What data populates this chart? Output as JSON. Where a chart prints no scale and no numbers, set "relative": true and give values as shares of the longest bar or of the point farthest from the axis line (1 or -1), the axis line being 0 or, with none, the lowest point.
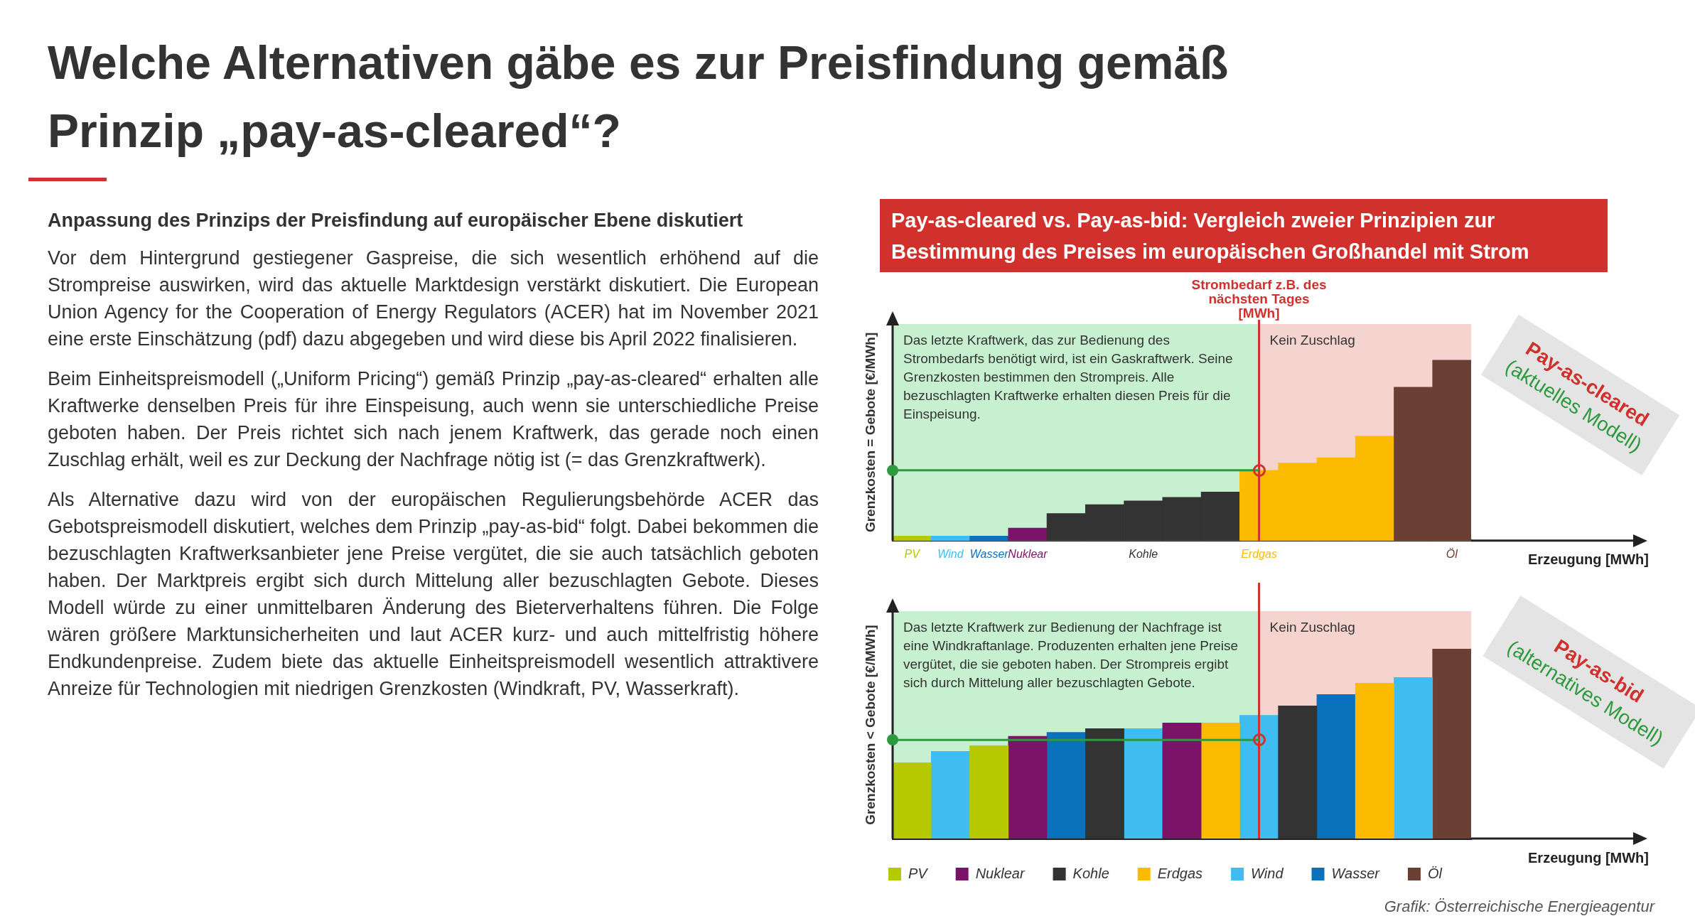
{
  "chart_data": [
    {
      "type": "other",
      "title": "Welche Alternativen gäbe es zur Preisfindung gemäß Prinzip „pay-as-cleared“?",
      "subtitle": "Anpassung des Prinzips der Preisfindung auf europäischer Ebene diskutiert",
      "annotations": [
        "Vor dem Hintergrund gestiegener Gaspreise, die sich wesentlich erhöhend auf die Strompreise auswirken, wird das aktuelle Marktdesign verstärkt diskutiert. Die European Union Agency for the Cooperation of Energy Regulators (ACER) hat im November 2021 eine erste Einschätzung (pdf) dazu abgegeben und wird diese bis April 2022 finalisieren.",
        "Beim Einheitspreismodell („Uniform Pricing“) gemäß Prinzip „pay-as-cleared“ erhalten alle Kraftwerke denselben Preis für ihre Einspeisung, auch wenn sie unterschiedliche Preise geboten haben. Der Preis richtet sich nach jenem Kraftwerk, das gerade noch einen Zuschlag erhält, weil es zur Deckung der Nachfrage nötig ist (= das Grenzkraftwerk).",
        "Als Alternative dazu wird von der europäischen Regulierungsbehörde ACER das Gebotspreismodell diskutiert, welches dem Prinzip „pay-as-bid“ folgt. Dabei bekommen die bezuschlagten Kraftwerksanbieter jene Preise vergütet, die sie auch tatsächlich geboten haben. Der Marktpreis ergibt sich durch Mittelung aller bezuschlagten Gebote. Dieses Modell würde zu einer unmittelbaren Änderung des Bieterverhaltens führen. Die Folge wären größere Marktunsicherheiten und laut ACER kurz- und auch mittelfristig höhere Endkundenpreise. Zudem biete das aktuelle Einheitspreismodell wesentlich attraktivere Anreize für Technologien mit niedrigen Grenzkosten (Windkraft, PV, Wasserkraft)."
      ]
    },
    {
      "type": "bar",
      "title": "Pay-as-cleared vs. Pay-as-bid: Vergleich zweier Prinzipien zur Bestimmung des Preises im europäischen Großhandel mit Strom",
      "ylabel": "Grenzkosten = Gebote [€/MWh]",
      "xlabel": "Erzeugung [MWh]",
      "relative": true,
      "tick_labels": "x",
      "categories": [
        "PV",
        "Wind",
        "Wasser",
        "Nuklear",
        null,
        null,
        "Kohle",
        null,
        null,
        "Erdgas",
        null,
        null,
        null,
        null,
        "Öl"
      ],
      "series": [
        {
          "values": [
            0.025,
            0.025,
            0.025,
            0.07,
            0.15,
            0.2,
            0.22,
            0.24,
            0.27,
            0.39,
            0.43,
            0.46,
            0.58,
            0.85,
            1
          ],
          "colors": [
            "#b5c800",
            "#3fbcf0",
            "#0a72bd",
            "#7b1468",
            "#333333",
            "#333333",
            "#333333",
            "#333333",
            "#333333",
            "#fdbb00",
            "#fdbb00",
            "#fdbb00",
            "#fdbb00",
            "#6b3f33",
            "#6b3f33"
          ]
        }
      ],
      "bands": [
        {
          "axis": "x",
          "from": "PV",
          "to": "Erdgas",
          "color": "#c6f0cf",
          "label": "Das letzte Kraftwerk, das zur Bedienung des Strombedarfs benötigt wird, ist ein Gaskraftwerk. Seine Grenzkosten bestimmen den Strompreis. Alle bezuschlagten Kraftwerke erhalten diesen Preis für die Einspeisung."
        },
        {
          "axis": "x",
          "from": "Erdgas",
          "to": "Öl",
          "color": "#f5d4cf",
          "label": "Kein Zuschlag"
        }
      ],
      "ref_lines": [
        {
          "axis": "x",
          "value": "Erdgas",
          "color": "#d0312d",
          "label": "Strombedarf z.B. des nächsten Tages [MWh]"
        },
        {
          "axis": "y",
          "value": 0.39,
          "color": "#2e9a3e"
        }
      ],
      "annotations": [
        "Pay-as-cleared",
        "(aktuelles Modell)"
      ]
    },
    {
      "type": "bar",
      "ylabel": "Grenzkosten < Gebote [€/MWh]",
      "xlabel": "Erzeugung [MWh]",
      "relative": true,
      "stacked": true,
      "tick_labels": false,
      "legend": "bottom left",
      "categories": [
        null,
        null,
        null,
        null,
        null,
        null,
        null,
        null,
        null,
        null,
        null,
        null,
        null,
        null,
        null
      ],
      "series": [
        {
          "name": "PV",
          "color": "#b5c800",
          "values": [
            0.4,
            null,
            0.49,
            null,
            null,
            null,
            null,
            null,
            null,
            null,
            null,
            null,
            null,
            null,
            null
          ]
        },
        {
          "name": "Nuklear",
          "color": "#7b1468",
          "values": [
            null,
            null,
            null,
            0.54,
            null,
            null,
            null,
            0.61,
            null,
            null,
            null,
            null,
            null,
            null,
            null
          ]
        },
        {
          "name": "Kohle",
          "color": "#333333",
          "values": [
            null,
            null,
            null,
            null,
            null,
            0.58,
            null,
            null,
            null,
            null,
            0.7,
            null,
            null,
            null,
            null
          ]
        },
        {
          "name": "Erdgas",
          "color": "#fdbb00",
          "values": [
            null,
            null,
            null,
            null,
            null,
            null,
            null,
            null,
            0.61,
            null,
            null,
            null,
            0.82,
            null,
            null
          ]
        },
        {
          "name": "Wind",
          "color": "#3fbcf0",
          "values": [
            null,
            0.46,
            null,
            null,
            null,
            null,
            0.58,
            null,
            null,
            0.65,
            null,
            null,
            null,
            0.85,
            null
          ]
        },
        {
          "name": "Wasser",
          "color": "#0a72bd",
          "values": [
            null,
            null,
            null,
            null,
            0.56,
            null,
            null,
            null,
            null,
            null,
            null,
            0.76,
            null,
            null,
            null
          ]
        },
        {
          "name": "Öl",
          "color": "#6b3f33",
          "values": [
            null,
            null,
            null,
            null,
            null,
            null,
            null,
            null,
            null,
            null,
            null,
            null,
            null,
            null,
            1
          ]
        }
      ],
      "ref_lines": [
        {
          "axis": "y",
          "value": 0.52,
          "color": "#2e9a3e"
        }
      ],
      "annotations": [
        "Pay-as-bid",
        "(alternatives Modell)",
        "Das letzte Kraftwerk zur Bedienung der Nachfrage ist eine Windkraftanlage. Produzenten erhalten jene Preise vergütet, die sie geboten haben. Der Strompreis ergibt sich durch Mittelung aller bezuschlagten Gebote.",
        "Kein Zuschlag",
        "Grafik: Österreichische Energieagentur"
      ]
    }
  ]
}
